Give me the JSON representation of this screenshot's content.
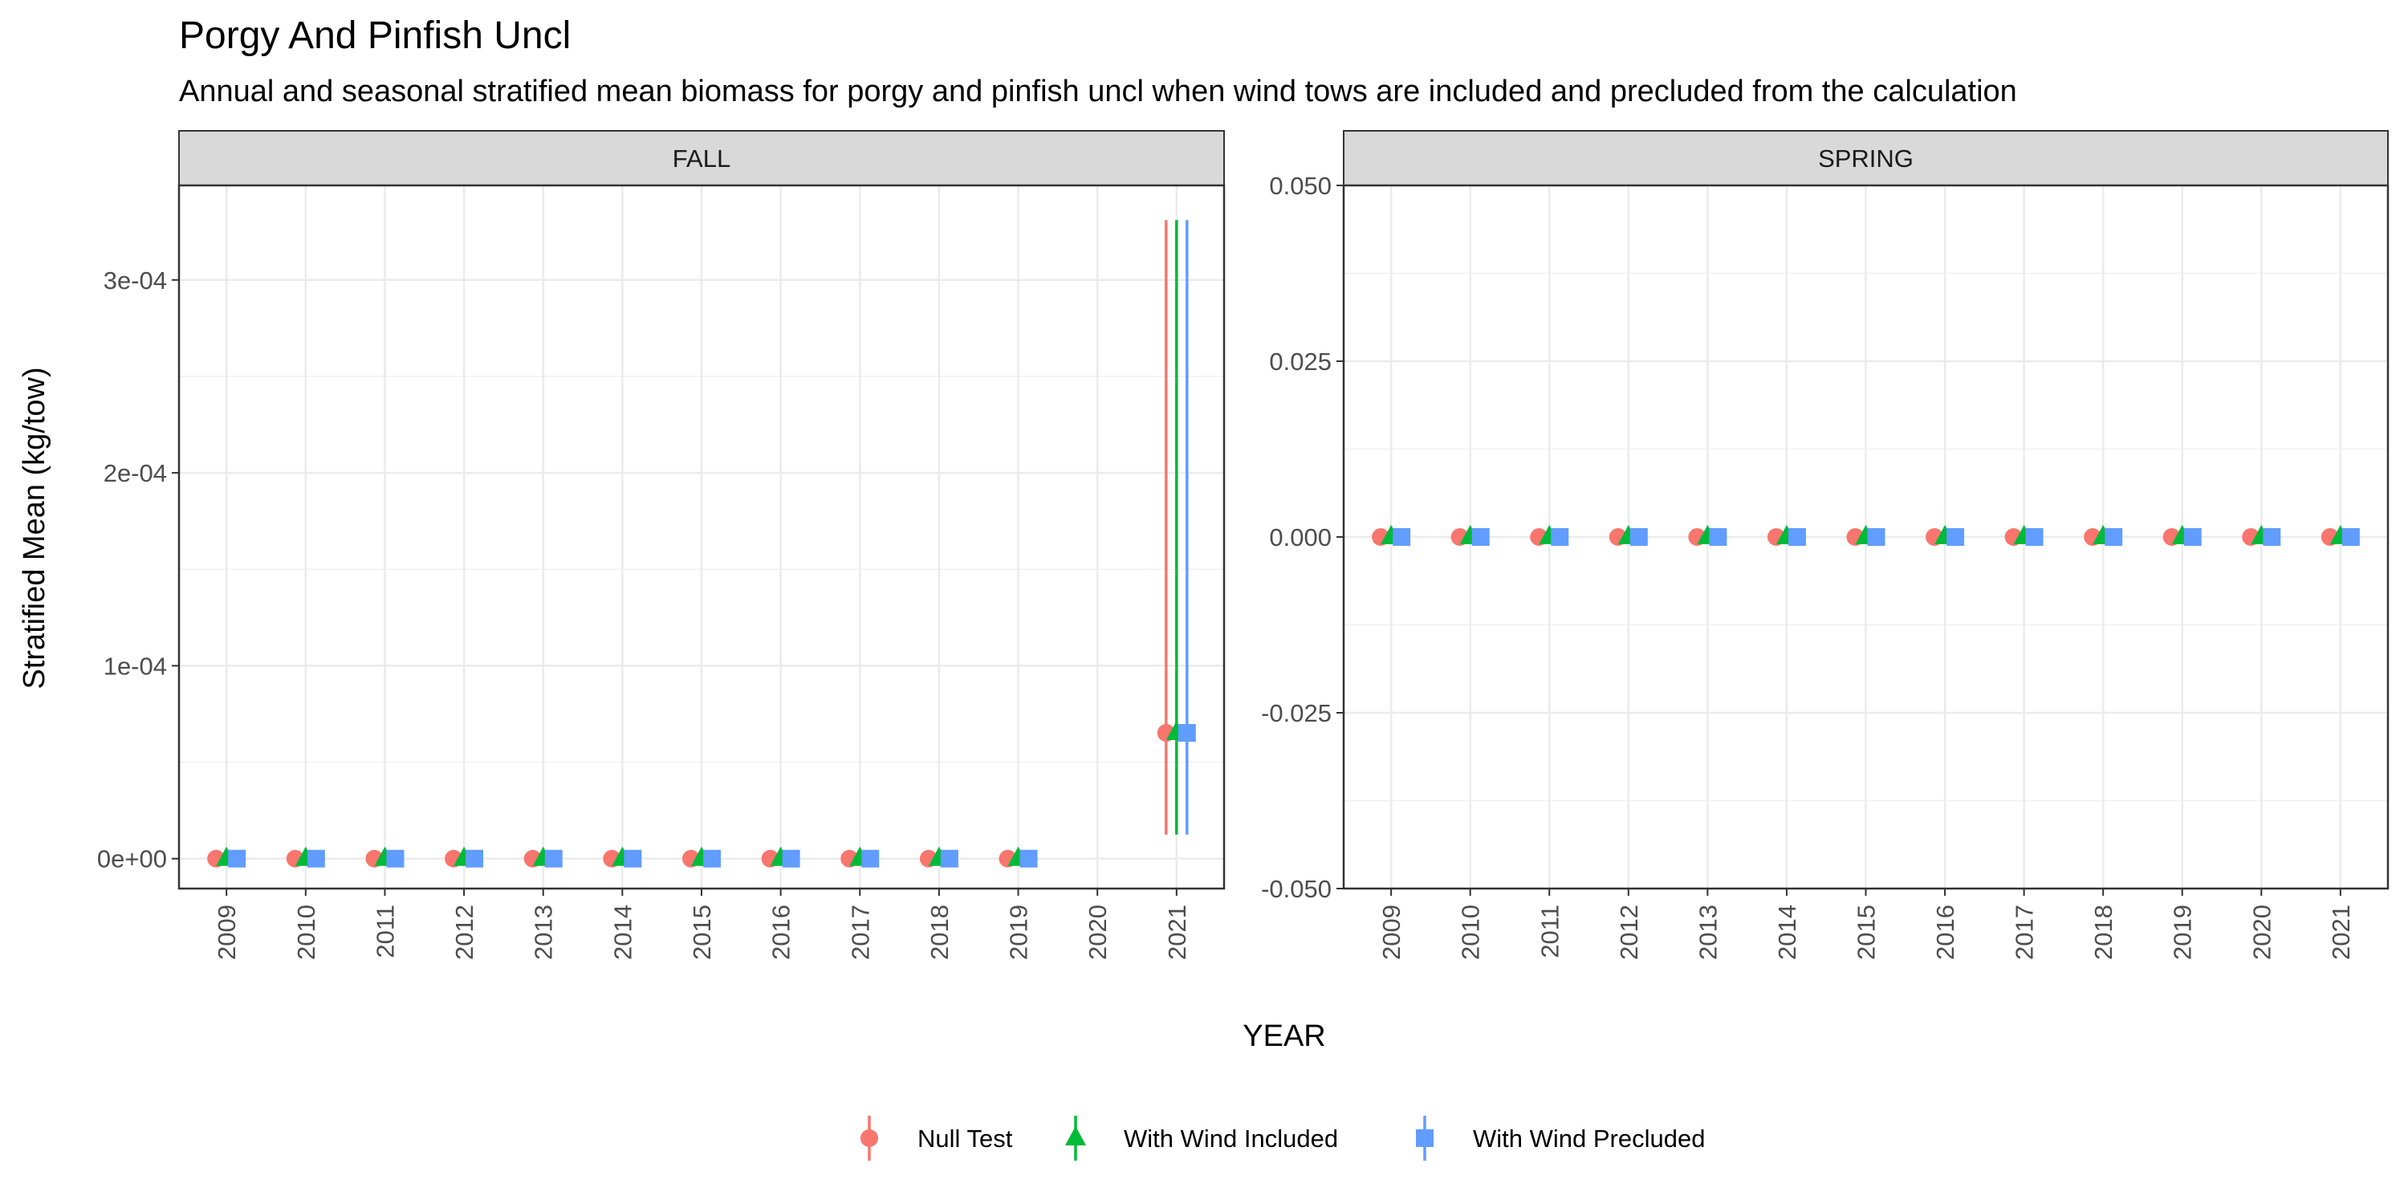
{
  "chart_data": {
    "type": "scatter",
    "title": "Porgy And Pinfish Uncl",
    "subtitle": "Annual and seasonal stratified mean biomass for porgy and pinfish uncl when wind tows are included and precluded from the calculation",
    "xlabel": "YEAR",
    "ylabel": "Stratified Mean (kg/tow)",
    "grid": true,
    "legend_position": "bottom",
    "series_meta": [
      {
        "name": "Null Test",
        "color": "#F8766D",
        "shape": "circle"
      },
      {
        "name": "With Wind Included",
        "color": "#00BA38",
        "shape": "triangle"
      },
      {
        "name": "With Wind Precluded",
        "color": "#619CFF",
        "shape": "square"
      }
    ],
    "panels": [
      {
        "facet": "FALL",
        "x": [
          "2009",
          "2010",
          "2011",
          "2012",
          "2013",
          "2014",
          "2015",
          "2016",
          "2017",
          "2018",
          "2019",
          "2020",
          "2021"
        ],
        "ylim": [
          -1.55e-05,
          0.000349
        ],
        "yticks": [
          0,
          0.0001,
          0.0002,
          0.0003
        ],
        "ytick_labels": [
          "0e+00",
          "1e-04",
          "2e-04",
          "3e-04"
        ],
        "series": [
          {
            "name": "Null Test",
            "values": [
              0,
              0,
              0,
              0,
              0,
              0,
              0,
              0,
              0,
              0,
              0,
              null,
              6.52e-05
            ],
            "lower": [
              0,
              0,
              0,
              0,
              0,
              0,
              0,
              0,
              0,
              0,
              0,
              null,
              1.25e-05
            ],
            "upper": [
              0,
              0,
              0,
              0,
              0,
              0,
              0,
              0,
              0,
              0,
              0,
              null,
              0.000331
            ]
          },
          {
            "name": "With Wind Included",
            "values": [
              0,
              0,
              0,
              0,
              0,
              0,
              0,
              0,
              0,
              0,
              0,
              null,
              6.52e-05
            ],
            "lower": [
              0,
              0,
              0,
              0,
              0,
              0,
              0,
              0,
              0,
              0,
              0,
              null,
              1.25e-05
            ],
            "upper": [
              0,
              0,
              0,
              0,
              0,
              0,
              0,
              0,
              0,
              0,
              0,
              null,
              0.000331
            ]
          },
          {
            "name": "With Wind Precluded",
            "values": [
              0,
              0,
              0,
              0,
              0,
              0,
              0,
              0,
              0,
              0,
              0,
              null,
              6.52e-05
            ],
            "lower": [
              0,
              0,
              0,
              0,
              0,
              0,
              0,
              0,
              0,
              0,
              0,
              null,
              1.25e-05
            ],
            "upper": [
              0,
              0,
              0,
              0,
              0,
              0,
              0,
              0,
              0,
              0,
              0,
              null,
              0.000331
            ]
          }
        ]
      },
      {
        "facet": "SPRING",
        "x": [
          "2009",
          "2010",
          "2011",
          "2012",
          "2013",
          "2014",
          "2015",
          "2016",
          "2017",
          "2018",
          "2019",
          "2020",
          "2021"
        ],
        "ylim": [
          -0.05,
          0.05
        ],
        "yticks": [
          -0.05,
          -0.025,
          0,
          0.025,
          0.05
        ],
        "ytick_labels": [
          "-0.050",
          "-0.025",
          "0.000",
          "0.025",
          "0.050"
        ],
        "series": [
          {
            "name": "Null Test",
            "values": [
              0,
              0,
              0,
              0,
              0,
              0,
              0,
              0,
              0,
              0,
              0,
              0,
              0
            ],
            "lower": [
              0,
              0,
              0,
              0,
              0,
              0,
              0,
              0,
              0,
              0,
              0,
              0,
              0
            ],
            "upper": [
              0,
              0,
              0,
              0,
              0,
              0,
              0,
              0,
              0,
              0,
              0,
              0,
              0
            ]
          },
          {
            "name": "With Wind Included",
            "values": [
              0,
              0,
              0,
              0,
              0,
              0,
              0,
              0,
              0,
              0,
              0,
              0,
              0
            ],
            "lower": [
              0,
              0,
              0,
              0,
              0,
              0,
              0,
              0,
              0,
              0,
              0,
              0,
              0
            ],
            "upper": [
              0,
              0,
              0,
              0,
              0,
              0,
              0,
              0,
              0,
              0,
              0,
              0,
              0
            ]
          },
          {
            "name": "With Wind Precluded",
            "values": [
              0,
              0,
              0,
              0,
              0,
              0,
              0,
              0,
              0,
              0,
              0,
              0,
              0
            ],
            "lower": [
              0,
              0,
              0,
              0,
              0,
              0,
              0,
              0,
              0,
              0,
              0,
              0,
              0
            ],
            "upper": [
              0,
              0,
              0,
              0,
              0,
              0,
              0,
              0,
              0,
              0,
              0,
              0,
              0
            ]
          }
        ]
      }
    ]
  }
}
